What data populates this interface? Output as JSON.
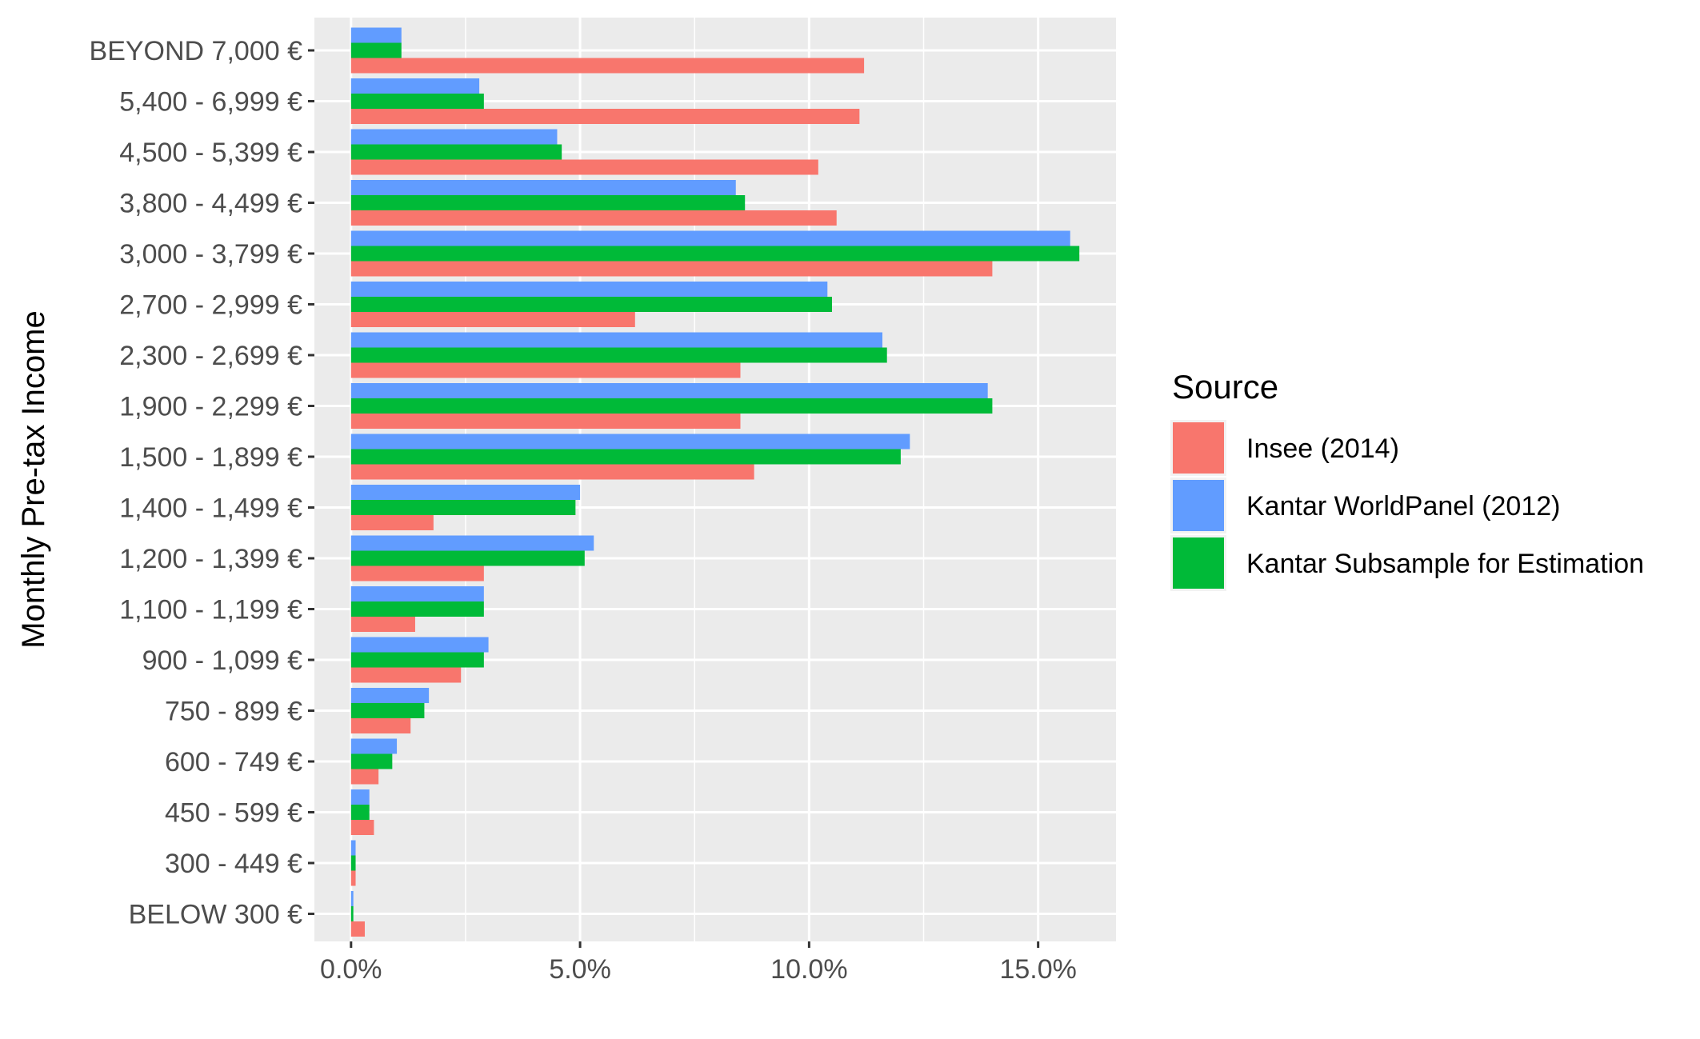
{
  "chart_data": {
    "type": "bar",
    "orientation": "horizontal",
    "title": "",
    "xlabel": "",
    "ylabel": "Monthly Pre-tax Income",
    "xlim": [
      -0.8,
      16.7
    ],
    "x_ticks": [
      0,
      5,
      10,
      15
    ],
    "x_tick_labels": [
      "0.0%",
      "5.0%",
      "10.0%",
      "15.0%"
    ],
    "grid": true,
    "legend_placement": "right",
    "legend_title": "Source",
    "categories": [
      "BEYOND 7,000 €",
      "5,400 - 6,999 €",
      "4,500 - 5,399 €",
      "3,800 - 4,499 €",
      "3,000 - 3,799 €",
      "2,700 - 2,999 €",
      "2,300 - 2,699 €",
      "1,900 - 2,299 €",
      "1,500 - 1,899 €",
      "1,400 - 1,499 €",
      "1,200 - 1,399 €",
      "1,100 - 1,199 €",
      "900 - 1,099 €",
      "750 - 899 €",
      "600 - 749 €",
      "450 - 599 €",
      "300 - 449 €",
      "BELOW 300 €"
    ],
    "series": [
      {
        "name": "Insee (2014)",
        "color": "#F8766D",
        "values": [
          11.2,
          11.1,
          10.2,
          10.6,
          14.0,
          6.2,
          8.5,
          8.5,
          8.8,
          1.8,
          2.9,
          1.4,
          2.4,
          1.3,
          0.6,
          0.5,
          0.1,
          0.3
        ]
      },
      {
        "name": "Kantar WorldPanel (2012)",
        "color": "#619CFF",
        "values": [
          1.1,
          2.8,
          4.5,
          8.4,
          15.7,
          10.4,
          11.6,
          13.9,
          12.2,
          5.0,
          5.3,
          2.9,
          3.0,
          1.7,
          1.0,
          0.4,
          0.1,
          0.05
        ]
      },
      {
        "name": "Kantar Subsample for Estimation",
        "color": "#00BA38",
        "values": [
          1.1,
          2.9,
          4.6,
          8.6,
          15.9,
          10.5,
          11.7,
          14.0,
          12.0,
          4.9,
          5.1,
          2.9,
          2.9,
          1.6,
          0.9,
          0.4,
          0.1,
          0.05
        ]
      }
    ]
  },
  "colors": {
    "panel_background": "#EBEBEB",
    "gridline": "#FFFFFF",
    "tick_mark": "#333333"
  }
}
